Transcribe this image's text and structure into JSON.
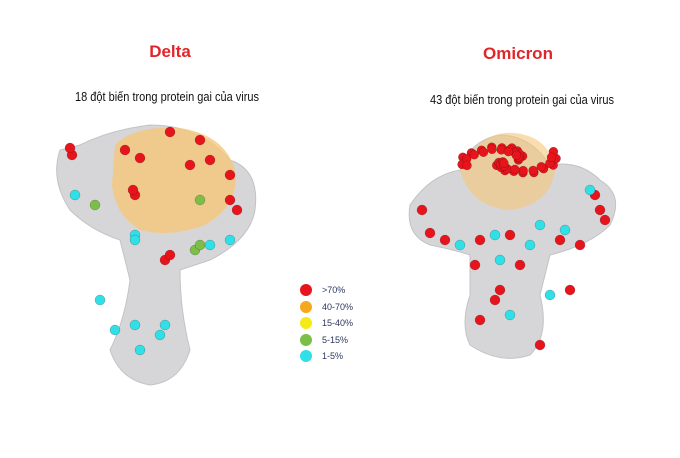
{
  "panels": [
    {
      "title": "Delta",
      "subtitle": "18 đột biến trong protein gai của virus",
      "head_color": "#f6c77a"
    },
    {
      "title": "Omicron",
      "subtitle": "43 đột biến trong protein gai của virus",
      "head_color": "#f6c77a"
    }
  ],
  "legend": [
    {
      "label": ">70%",
      "color": "#e8141c"
    },
    {
      "label": "40-70%",
      "color": "#f5a81c"
    },
    {
      "label": "15-40%",
      "color": "#f4ea16"
    },
    {
      "label": "5-15%",
      "color": "#7cbf48"
    },
    {
      "label": "1-5%",
      "color": "#2fe0e6"
    }
  ],
  "colors": {
    "title": "#e0262b",
    "protein": "#cfd0d2"
  }
}
